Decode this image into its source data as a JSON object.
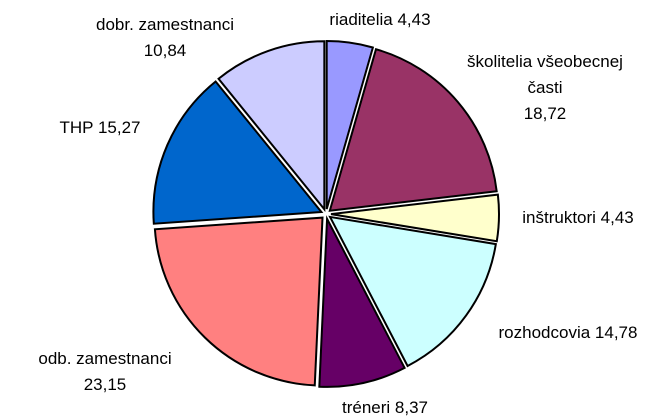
{
  "chart_data": {
    "type": "pie",
    "categories": [
      "riaditelia",
      "školitelia všeobecnej časti",
      "inštruktori",
      "rozhodcovia",
      "tréneri",
      "odb. zamestnanci",
      "THP",
      "dobr. zamestnanci"
    ],
    "values": [
      4.43,
      18.72,
      4.43,
      14.78,
      8.37,
      23.15,
      15.27,
      10.84
    ],
    "value_labels": [
      "4,43",
      "18,72",
      "4,43",
      "14,78",
      "8,37",
      "23,15",
      "15,27",
      "10,84"
    ],
    "colors": [
      "#9999ff",
      "#993366",
      "#ffffcc",
      "#ccffff",
      "#660066",
      "#ff8080",
      "#0066cc",
      "#ccccff"
    ]
  }
}
